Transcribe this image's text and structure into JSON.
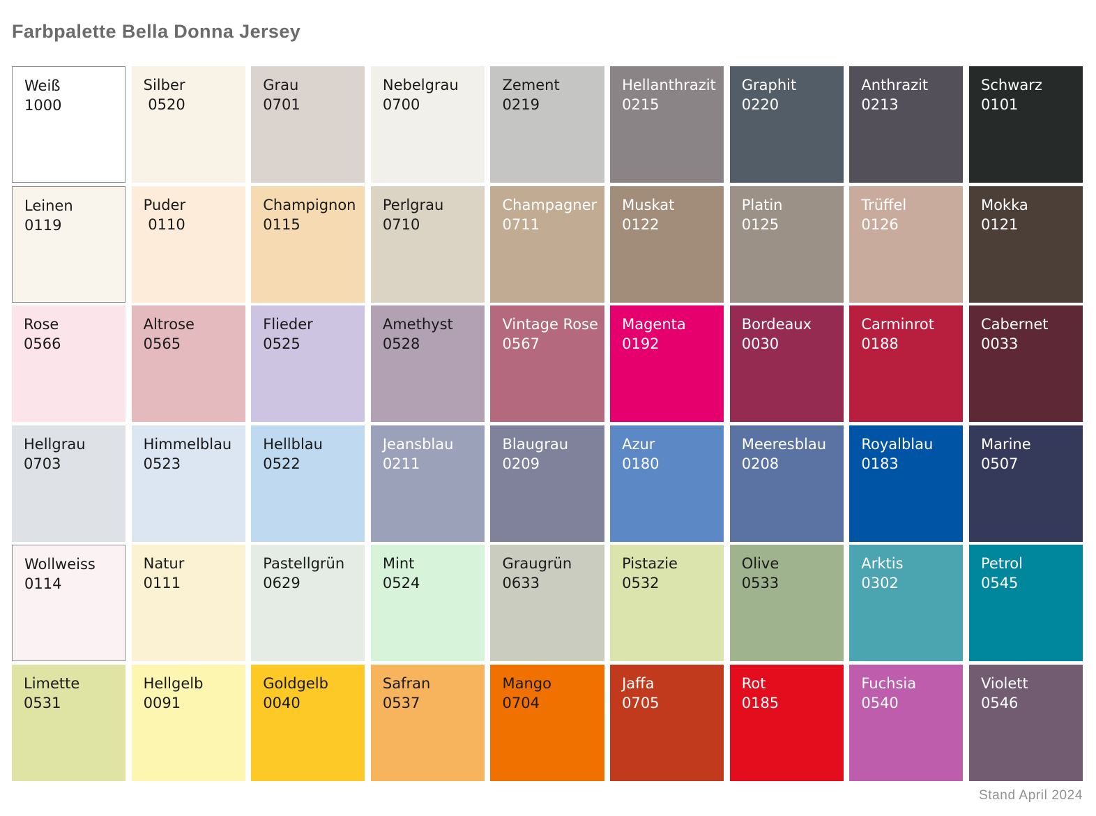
{
  "title": "Farbpalette Bella Donna Jersey",
  "footer": "Stand April 2024",
  "palette": {
    "rows": 6,
    "cols": 9,
    "swatches": [
      {
        "name": "Weiß",
        "code": "1000",
        "color": "#ffffff",
        "text": "dark",
        "border": true
      },
      {
        "name": "Silber",
        "code": " 0520",
        "color": "#f8f3e6",
        "text": "dark",
        "border": false
      },
      {
        "name": "Grau",
        "code": "0701",
        "color": "#dbd3cd",
        "text": "dark",
        "border": false
      },
      {
        "name": "Nebelgrau",
        "code": "0700",
        "color": "#f1f0ea",
        "text": "dark",
        "border": false
      },
      {
        "name": "Zement",
        "code": "0219",
        "color": "#c5c5c3",
        "text": "dark",
        "border": false
      },
      {
        "name": "Hellanthrazit",
        "code": "0215",
        "color": "#8b8487",
        "text": "light",
        "border": false
      },
      {
        "name": "Graphit",
        "code": "0220",
        "color": "#535d67",
        "text": "light",
        "border": false
      },
      {
        "name": "Anthrazit",
        "code": "0213",
        "color": "#54505a",
        "text": "light",
        "border": false
      },
      {
        "name": "Schwarz",
        "code": "0101",
        "color": "#262b29",
        "text": "light",
        "border": false
      },
      {
        "name": "Leinen",
        "code": "0119",
        "color": "#faf5ec",
        "text": "dark",
        "border": true
      },
      {
        "name": "Puder",
        "code": " 0110",
        "color": "#fdecd9",
        "text": "dark",
        "border": false
      },
      {
        "name": "Champignon",
        "code": "0115",
        "color": "#f6dbb2",
        "text": "dark",
        "border": false
      },
      {
        "name": "Perlgrau",
        "code": "0710",
        "color": "#dbd3c4",
        "text": "dark",
        "border": false
      },
      {
        "name": "Champagner",
        "code": "0711",
        "color": "#c1ab93",
        "text": "light",
        "border": false
      },
      {
        "name": "Muskat",
        "code": "0122",
        "color": "#a18d79",
        "text": "light",
        "border": false
      },
      {
        "name": "Platin",
        "code": "0125",
        "color": "#9c9187",
        "text": "light",
        "border": false
      },
      {
        "name": "Trüffel",
        "code": "0126",
        "color": "#c9ab9e",
        "text": "light",
        "border": false
      },
      {
        "name": "Mokka",
        "code": "0121",
        "color": "#4c3f38",
        "text": "light",
        "border": false
      },
      {
        "name": "Rose",
        "code": "0566",
        "color": "#fce4eb",
        "text": "dark",
        "border": false
      },
      {
        "name": "Altrose",
        "code": "0565",
        "color": "#e5babe",
        "text": "dark",
        "border": false
      },
      {
        "name": "Flieder",
        "code": "0525",
        "color": "#cdc4e2",
        "text": "dark",
        "border": false
      },
      {
        "name": "Amethyst",
        "code": "0528",
        "color": "#b2a1b3",
        "text": "dark",
        "border": false
      },
      {
        "name": "Vintage Rose",
        "code": "0567",
        "color": "#b5697e",
        "text": "light",
        "border": false
      },
      {
        "name": "Magenta",
        "code": "0192",
        "color": "#e5006d",
        "text": "light",
        "border": false
      },
      {
        "name": "Bordeaux",
        "code": "0030",
        "color": "#952b50",
        "text": "light",
        "border": false
      },
      {
        "name": "Carminrot",
        "code": "0188",
        "color": "#b81e3d",
        "text": "light",
        "border": false
      },
      {
        "name": "Cabernet",
        "code": "0033",
        "color": "#5e2836",
        "text": "light",
        "border": false
      },
      {
        "name": "Hellgrau",
        "code": "0703",
        "color": "#dee1e6",
        "text": "dark",
        "border": false
      },
      {
        "name": "Himmelblau",
        "code": "0523",
        "color": "#dce5f2",
        "text": "dark",
        "border": false
      },
      {
        "name": "Hellblau",
        "code": "0522",
        "color": "#bed9f0",
        "text": "dark",
        "border": false
      },
      {
        "name": "Jeansblau",
        "code": "0211",
        "color": "#9ba1b9",
        "text": "light",
        "border": false
      },
      {
        "name": "Blaugrau",
        "code": "0209",
        "color": "#7f829a",
        "text": "light",
        "border": false
      },
      {
        "name": "Azur",
        "code": "0180",
        "color": "#5c88c6",
        "text": "light",
        "border": false
      },
      {
        "name": "Meeresblau",
        "code": "0208",
        "color": "#5a73a2",
        "text": "light",
        "border": false
      },
      {
        "name": "Royalblau",
        "code": "0183",
        "color": "#0054a6",
        "text": "light",
        "border": false
      },
      {
        "name": "Marine",
        "code": "0507",
        "color": "#35395a",
        "text": "light",
        "border": false
      },
      {
        "name": "Wollweiss",
        "code": "0114",
        "color": "#fbf2f3",
        "text": "dark",
        "border": true
      },
      {
        "name": "Natur",
        "code": "0111",
        "color": "#fbf1d3",
        "text": "dark",
        "border": false
      },
      {
        "name": "Pastellgrün",
        "code": "0629",
        "color": "#e4ece5",
        "text": "dark",
        "border": false
      },
      {
        "name": "Mint",
        "code": "0524",
        "color": "#d7f3da",
        "text": "dark",
        "border": false
      },
      {
        "name": "Graugrün",
        "code": "0633",
        "color": "#c9ccbe",
        "text": "dark",
        "border": false
      },
      {
        "name": "Pistazie",
        "code": "0532",
        "color": "#dce4ae",
        "text": "dark",
        "border": false
      },
      {
        "name": "Olive",
        "code": "0533",
        "color": "#9eb38e",
        "text": "dark",
        "border": false
      },
      {
        "name": "Arktis",
        "code": "0302",
        "color": "#4ba5b1",
        "text": "light",
        "border": false
      },
      {
        "name": "Petrol",
        "code": "0545",
        "color": "#00879e",
        "text": "light",
        "border": false
      },
      {
        "name": "Limette",
        "code": "0531",
        "color": "#dfe3a3",
        "text": "dark",
        "border": false
      },
      {
        "name": "Hellgelb",
        "code": "0091",
        "color": "#fcf6b1",
        "text": "dark",
        "border": false
      },
      {
        "name": "Goldgelb",
        "code": "0040",
        "color": "#fcc926",
        "text": "dark",
        "border": false
      },
      {
        "name": "Safran",
        "code": "0537",
        "color": "#f8b45c",
        "text": "dark",
        "border": false
      },
      {
        "name": "Mango",
        "code": "0704",
        "color": "#f07100",
        "text": "dark",
        "border": false
      },
      {
        "name": "Jaffa",
        "code": "0705",
        "color": "#c13a1d",
        "text": "light",
        "border": false
      },
      {
        "name": "Rot",
        "code": "0185",
        "color": "#e30d1d",
        "text": "light",
        "border": false
      },
      {
        "name": "Fuchsia",
        "code": "0540",
        "color": "#bd5dab",
        "text": "light",
        "border": false
      },
      {
        "name": "Violett",
        "code": "0546",
        "color": "#715c72",
        "text": "light",
        "border": false
      }
    ]
  }
}
